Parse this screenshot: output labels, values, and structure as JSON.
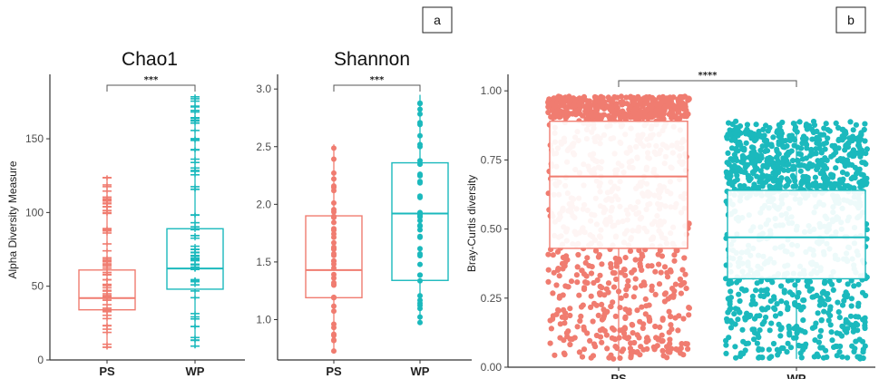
{
  "panel_labels": [
    "a",
    "b"
  ],
  "colors": {
    "PS": "#f07c70",
    "WP": "#1bb9bd",
    "axis": "#333333"
  },
  "chart_data": [
    {
      "type": "box",
      "title": "Chao1",
      "ylabel": "Alpha Diversity Measure",
      "xlabel": "",
      "categories": [
        "PS",
        "WP"
      ],
      "ylim": [
        0,
        190
      ],
      "yticks": [
        0,
        50,
        100,
        150
      ],
      "ytick_labels": [
        "0",
        "50",
        "100",
        "150"
      ],
      "boxes": [
        {
          "name": "PS",
          "whisker_low": 8,
          "q1": 34,
          "median": 42,
          "q3": 61,
          "whisker_high": 124
        },
        {
          "name": "WP",
          "whisker_low": 8,
          "q1": 48,
          "median": 62,
          "q3": 89,
          "whisker_high": 180
        }
      ],
      "significance": "***",
      "point_style": "cross"
    },
    {
      "type": "box",
      "title": "Shannon",
      "ylabel": "",
      "xlabel": "",
      "categories": [
        "PS",
        "WP"
      ],
      "ylim": [
        0.65,
        3.08
      ],
      "yticks": [
        1.0,
        1.5,
        2.0,
        2.5,
        3.0
      ],
      "ytick_labels": [
        "1.0",
        "1.5",
        "2.0",
        "2.5",
        "3.0"
      ],
      "boxes": [
        {
          "name": "PS",
          "whisker_low": 0.72,
          "q1": 1.19,
          "median": 1.43,
          "q3": 1.9,
          "whisker_high": 2.52
        },
        {
          "name": "WP",
          "whisker_low": 0.96,
          "q1": 1.34,
          "median": 1.92,
          "q3": 2.36,
          "whisker_high": 2.95
        }
      ],
      "significance": "***",
      "point_style": "dot"
    },
    {
      "type": "box",
      "title": "",
      "ylabel": "Bray-Curtis diversity",
      "xlabel": "",
      "categories": [
        "PS",
        "WP"
      ],
      "ylim": [
        0,
        1.04
      ],
      "yticks": [
        0.0,
        0.25,
        0.5,
        0.75,
        1.0
      ],
      "ytick_labels": [
        "0.00",
        "0.25",
        "0.50",
        "0.75",
        "1.00"
      ],
      "boxes": [
        {
          "name": "PS",
          "whisker_low": 0.03,
          "q1": 0.43,
          "median": 0.69,
          "q3": 0.89,
          "whisker_high": 0.98
        },
        {
          "name": "WP",
          "whisker_low": 0.03,
          "q1": 0.32,
          "median": 0.47,
          "q3": 0.64,
          "whisker_high": 0.89
        }
      ],
      "significance": "****",
      "point_style": "jitter"
    }
  ]
}
